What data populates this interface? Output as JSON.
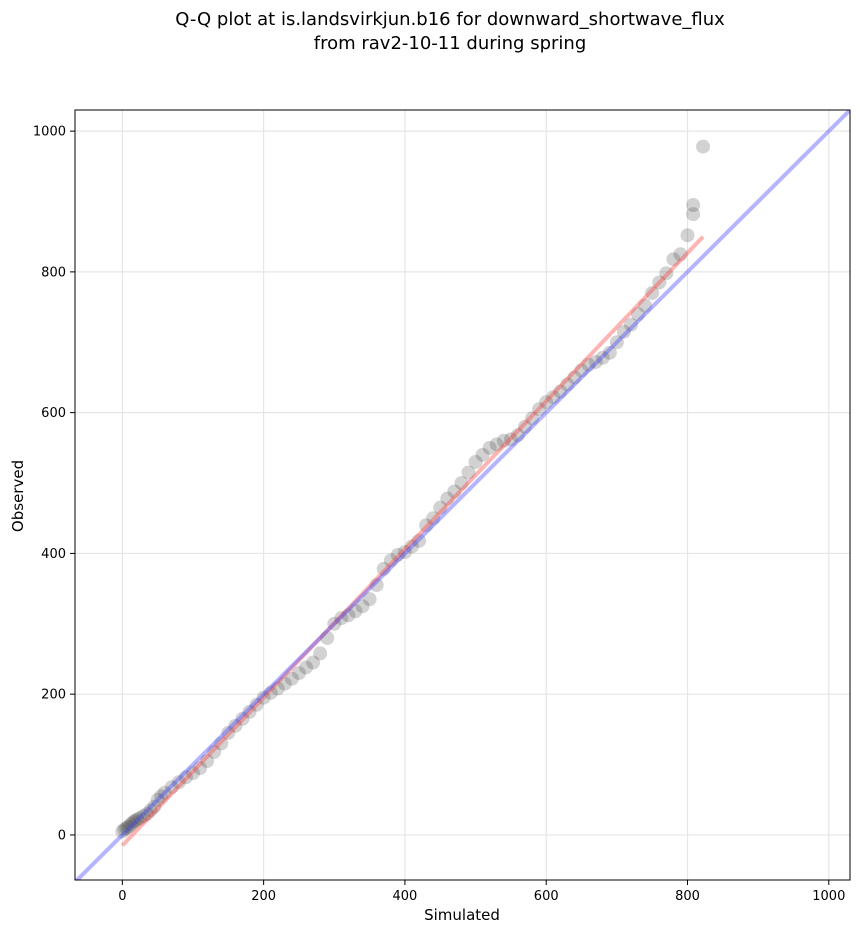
{
  "chart_data": {
    "type": "scatter",
    "title": [
      "Q-Q plot at is.landsvirkjun.b16 for downward_shortwave_flux",
      "from rav2-10-11 during spring"
    ],
    "xlabel": "Simulated",
    "ylabel": "Observed",
    "xlim": [
      -67,
      1030
    ],
    "ylim": [
      -64,
      1030
    ],
    "xticks": [
      0,
      200,
      400,
      600,
      800,
      1000
    ],
    "yticks": [
      0,
      200,
      400,
      600,
      800,
      1000
    ],
    "grid": true,
    "series": [
      {
        "kind": "points",
        "color": "#333333",
        "x": [
          0,
          3,
          6,
          9,
          12,
          15,
          18,
          21,
          25,
          30,
          35,
          40,
          45,
          50,
          55,
          60,
          70,
          80,
          90,
          100,
          110,
          120,
          130,
          140,
          150,
          160,
          170,
          180,
          190,
          200,
          210,
          220,
          230,
          240,
          250,
          260,
          270,
          280,
          290,
          300,
          310,
          320,
          330,
          340,
          350,
          360,
          370,
          380,
          390,
          400,
          410,
          420,
          430,
          440,
          450,
          460,
          470,
          480,
          490,
          500,
          510,
          520,
          530,
          540,
          550,
          560,
          570,
          580,
          590,
          600,
          610,
          620,
          630,
          640,
          650,
          660,
          670,
          680,
          690,
          700,
          710,
          720,
          730,
          740,
          750,
          760,
          770,
          780,
          790,
          800,
          808,
          808,
          822
        ],
        "y": [
          5,
          8,
          10,
          12,
          15,
          18,
          20,
          22,
          24,
          27,
          30,
          35,
          40,
          50,
          55,
          60,
          68,
          75,
          82,
          88,
          95,
          105,
          118,
          130,
          145,
          155,
          165,
          175,
          185,
          195,
          202,
          208,
          215,
          222,
          230,
          238,
          245,
          258,
          280,
          300,
          308,
          312,
          318,
          325,
          335,
          355,
          378,
          390,
          398,
          402,
          410,
          418,
          440,
          450,
          465,
          478,
          488,
          500,
          515,
          530,
          540,
          550,
          555,
          560,
          562,
          568,
          580,
          592,
          605,
          615,
          622,
          630,
          640,
          650,
          660,
          668,
          672,
          678,
          685,
          700,
          715,
          725,
          740,
          752,
          770,
          785,
          798,
          818,
          825,
          852,
          882,
          895,
          978
        ]
      },
      {
        "kind": "line",
        "name": "",
        "color": "#ff4444",
        "x": [
          0,
          822
        ],
        "y": [
          -15,
          850
        ]
      },
      {
        "kind": "line",
        "name": "",
        "color": "#4444ff",
        "x": [
          -67,
          1030
        ],
        "y": [
          -67,
          1030
        ]
      }
    ]
  }
}
